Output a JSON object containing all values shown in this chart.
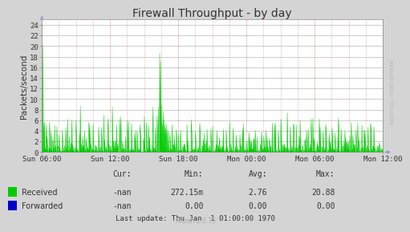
{
  "title": "Firewall Throughput - by day",
  "ylabel": "Packets/second",
  "ylim": [
    0,
    25
  ],
  "yticks": [
    0,
    2,
    4,
    6,
    8,
    10,
    12,
    14,
    16,
    18,
    20,
    22,
    24
  ],
  "xtick_labels": [
    "Sun 06:00",
    "Sun 12:00",
    "Sun 18:00",
    "Mon 00:00",
    "Mon 06:00",
    "Mon 12:00"
  ],
  "bg_color": "#d4d4d4",
  "plot_bg_color": "#ffffff",
  "grid_color_h": "#cccccc",
  "grid_color_v_dot": "#cc6666",
  "line_color_received": "#00cc00",
  "fill_color_received": "#00cc00",
  "legend_received": "Received",
  "legend_forwarded": "Forwarded",
  "legend_received_color": "#00cc00",
  "legend_forwarded_color": "#0000cc",
  "stats_cur_received": "-nan",
  "stats_min_received": "272.15m",
  "stats_avg_received": "2.76",
  "stats_max_received": "20.88",
  "stats_cur_forwarded": "-nan",
  "stats_min_forwarded": "0.00",
  "stats_avg_forwarded": "0.00",
  "stats_max_forwarded": "0.00",
  "last_update": "Last update: Thu Jan  1 01:00:00 1970",
  "munin_version": "Munin 2.0.75",
  "title_fontsize": 10,
  "axis_fontsize": 7,
  "watermark": "RRDTOOL / TOBI OETIKER",
  "num_points": 800,
  "arrow_color": "#9999cc"
}
